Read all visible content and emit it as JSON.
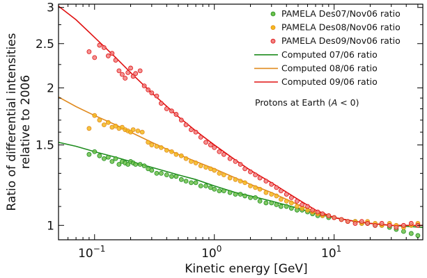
{
  "chart_data": {
    "type": "scatter",
    "xlabel": "Kinetic energy [GeV]",
    "ylabel_lines": [
      "Ratio of differential intensities",
      "relative to 2006"
    ],
    "xscale": "log",
    "yscale": "log",
    "xlim": [
      0.05,
      55
    ],
    "ylim": [
      0.93,
      3.05
    ],
    "x_ticks": [
      {
        "value": 0.1,
        "base": "10",
        "exp": "−1"
      },
      {
        "value": 1,
        "base": "10",
        "exp": "0"
      },
      {
        "value": 10,
        "base": "10",
        "exp": "1"
      }
    ],
    "y_ticks": [
      {
        "value": 1,
        "label": "1"
      },
      {
        "value": 1.5,
        "label": "1.5"
      },
      {
        "value": 2,
        "label": "2"
      },
      {
        "value": 2.5,
        "label": "2.5"
      },
      {
        "value": 3,
        "label": "3"
      }
    ],
    "annotation": {
      "prefix": "Protons at Earth (",
      "symbol": "A",
      "suffix": " < 0)"
    },
    "legend_position": "top-right",
    "colors": {
      "green": "#1e8c1e",
      "green_fill": "#6cbf4a",
      "orange": "#e08a1e",
      "orange_fill": "#f5b81c",
      "red": "#e01010",
      "red_fill": "#f08080"
    },
    "series": [
      {
        "name": "PAMELA Des07/Nov06 ratio",
        "kind": "points",
        "color_key": "green",
        "points": [
          [
            0.09,
            1.43
          ],
          [
            0.1,
            1.45
          ],
          [
            0.11,
            1.42
          ],
          [
            0.12,
            1.4
          ],
          [
            0.13,
            1.41
          ],
          [
            0.14,
            1.38
          ],
          [
            0.15,
            1.4
          ],
          [
            0.16,
            1.36
          ],
          [
            0.17,
            1.38
          ],
          [
            0.18,
            1.37
          ],
          [
            0.19,
            1.36
          ],
          [
            0.2,
            1.38
          ],
          [
            0.21,
            1.37
          ],
          [
            0.22,
            1.36
          ],
          [
            0.24,
            1.36
          ],
          [
            0.26,
            1.35
          ],
          [
            0.28,
            1.33
          ],
          [
            0.3,
            1.32
          ],
          [
            0.33,
            1.3
          ],
          [
            0.36,
            1.3
          ],
          [
            0.4,
            1.29
          ],
          [
            0.44,
            1.28
          ],
          [
            0.48,
            1.28
          ],
          [
            0.53,
            1.26
          ],
          [
            0.58,
            1.25
          ],
          [
            0.64,
            1.24
          ],
          [
            0.7,
            1.24
          ],
          [
            0.77,
            1.22
          ],
          [
            0.85,
            1.22
          ],
          [
            0.93,
            1.21
          ],
          [
            1.0,
            1.2
          ],
          [
            1.1,
            1.19
          ],
          [
            1.2,
            1.19
          ],
          [
            1.35,
            1.18
          ],
          [
            1.5,
            1.17
          ],
          [
            1.65,
            1.17
          ],
          [
            1.8,
            1.16
          ],
          [
            2.0,
            1.15
          ],
          [
            2.2,
            1.15
          ],
          [
            2.4,
            1.13
          ],
          [
            2.7,
            1.12
          ],
          [
            3.0,
            1.12
          ],
          [
            3.3,
            1.11
          ],
          [
            3.6,
            1.1
          ],
          [
            4.0,
            1.1
          ],
          [
            4.4,
            1.09
          ],
          [
            4.9,
            1.08
          ],
          [
            5.4,
            1.08
          ],
          [
            6.0,
            1.07
          ],
          [
            6.6,
            1.06
          ],
          [
            7.3,
            1.05
          ],
          [
            8.0,
            1.05
          ],
          [
            9.0,
            1.04
          ],
          [
            10,
            1.04
          ],
          [
            11.5,
            1.03
          ],
          [
            13,
            1.02
          ],
          [
            15,
            1.02
          ],
          [
            17,
            1.01
          ],
          [
            19,
            1.01
          ],
          [
            22,
            1.0
          ],
          [
            25,
            1.0
          ],
          [
            29,
            0.99
          ],
          [
            33,
            0.98
          ],
          [
            38,
            0.97
          ],
          [
            44,
            0.96
          ],
          [
            50,
            0.95
          ]
        ]
      },
      {
        "name": "PAMELA Des08/Nov06 ratio",
        "kind": "points",
        "color_key": "orange",
        "points": [
          [
            0.09,
            1.63
          ],
          [
            0.1,
            1.74
          ],
          [
            0.11,
            1.7
          ],
          [
            0.12,
            1.66
          ],
          [
            0.13,
            1.68
          ],
          [
            0.14,
            1.64
          ],
          [
            0.15,
            1.65
          ],
          [
            0.16,
            1.63
          ],
          [
            0.17,
            1.64
          ],
          [
            0.18,
            1.62
          ],
          [
            0.19,
            1.61
          ],
          [
            0.2,
            1.6
          ],
          [
            0.21,
            1.62
          ],
          [
            0.23,
            1.61
          ],
          [
            0.25,
            1.6
          ],
          [
            0.28,
            1.52
          ],
          [
            0.3,
            1.5
          ],
          [
            0.33,
            1.49
          ],
          [
            0.36,
            1.48
          ],
          [
            0.4,
            1.46
          ],
          [
            0.44,
            1.45
          ],
          [
            0.48,
            1.43
          ],
          [
            0.53,
            1.42
          ],
          [
            0.58,
            1.4
          ],
          [
            0.64,
            1.38
          ],
          [
            0.7,
            1.37
          ],
          [
            0.77,
            1.35
          ],
          [
            0.85,
            1.34
          ],
          [
            0.93,
            1.33
          ],
          [
            1.0,
            1.32
          ],
          [
            1.1,
            1.3
          ],
          [
            1.2,
            1.29
          ],
          [
            1.35,
            1.27
          ],
          [
            1.5,
            1.26
          ],
          [
            1.65,
            1.25
          ],
          [
            1.8,
            1.24
          ],
          [
            2.0,
            1.22
          ],
          [
            2.2,
            1.21
          ],
          [
            2.4,
            1.2
          ],
          [
            2.7,
            1.18
          ],
          [
            3.0,
            1.17
          ],
          [
            3.3,
            1.16
          ],
          [
            3.6,
            1.14
          ],
          [
            4.0,
            1.13
          ],
          [
            4.4,
            1.12
          ],
          [
            4.9,
            1.1
          ],
          [
            5.4,
            1.09
          ],
          [
            6.0,
            1.08
          ],
          [
            6.6,
            1.07
          ],
          [
            7.3,
            1.06
          ],
          [
            8.0,
            1.05
          ],
          [
            9.0,
            1.05
          ],
          [
            10,
            1.04
          ],
          [
            11.5,
            1.03
          ],
          [
            13,
            1.02
          ],
          [
            15,
            1.02
          ],
          [
            17,
            1.01
          ],
          [
            19,
            1.02
          ],
          [
            22,
            1.01
          ],
          [
            25,
            1.0
          ],
          [
            29,
            1.01
          ],
          [
            33,
            1.0
          ],
          [
            38,
            0.99
          ],
          [
            44,
            1.0
          ],
          [
            50,
            1.01
          ]
        ]
      },
      {
        "name": "PAMELA Des09/Nov06 ratio",
        "kind": "points",
        "color_key": "red",
        "points": [
          [
            0.09,
            2.4
          ],
          [
            0.1,
            2.33
          ],
          [
            0.11,
            2.48
          ],
          [
            0.12,
            2.45
          ],
          [
            0.13,
            2.35
          ],
          [
            0.14,
            2.38
          ],
          [
            0.15,
            2.3
          ],
          [
            0.16,
            2.18
          ],
          [
            0.17,
            2.14
          ],
          [
            0.18,
            2.1
          ],
          [
            0.19,
            2.16
          ],
          [
            0.2,
            2.21
          ],
          [
            0.21,
            2.12
          ],
          [
            0.22,
            2.15
          ],
          [
            0.24,
            2.18
          ],
          [
            0.26,
            2.02
          ],
          [
            0.28,
            1.98
          ],
          [
            0.3,
            1.95
          ],
          [
            0.33,
            1.92
          ],
          [
            0.36,
            1.85
          ],
          [
            0.4,
            1.8
          ],
          [
            0.44,
            1.78
          ],
          [
            0.48,
            1.75
          ],
          [
            0.53,
            1.7
          ],
          [
            0.58,
            1.66
          ],
          [
            0.64,
            1.62
          ],
          [
            0.7,
            1.6
          ],
          [
            0.77,
            1.56
          ],
          [
            0.85,
            1.52
          ],
          [
            0.93,
            1.5
          ],
          [
            1.0,
            1.48
          ],
          [
            1.1,
            1.45
          ],
          [
            1.2,
            1.43
          ],
          [
            1.35,
            1.4
          ],
          [
            1.5,
            1.38
          ],
          [
            1.65,
            1.36
          ],
          [
            1.8,
            1.33
          ],
          [
            2.0,
            1.31
          ],
          [
            2.2,
            1.29
          ],
          [
            2.4,
            1.27
          ],
          [
            2.7,
            1.25
          ],
          [
            3.0,
            1.23
          ],
          [
            3.3,
            1.21
          ],
          [
            3.6,
            1.19
          ],
          [
            4.0,
            1.17
          ],
          [
            4.4,
            1.15
          ],
          [
            4.9,
            1.13
          ],
          [
            5.4,
            1.11
          ],
          [
            6.0,
            1.1
          ],
          [
            6.6,
            1.08
          ],
          [
            7.3,
            1.07
          ],
          [
            8.0,
            1.06
          ],
          [
            9.0,
            1.05
          ],
          [
            10,
            1.04
          ],
          [
            11.5,
            1.03
          ],
          [
            13,
            1.02
          ],
          [
            15,
            1.01
          ],
          [
            17,
            1.02
          ],
          [
            19,
            1.01
          ],
          [
            22,
            1.0
          ],
          [
            25,
            1.01
          ],
          [
            29,
            1.0
          ],
          [
            33,
            0.99
          ],
          [
            38,
            1.0
          ],
          [
            44,
            1.01
          ],
          [
            50,
            1.0
          ]
        ]
      },
      {
        "name": "Computed 07/06 ratio",
        "kind": "line",
        "color_key": "green",
        "points": [
          [
            0.05,
            1.52
          ],
          [
            0.07,
            1.49
          ],
          [
            0.1,
            1.45
          ],
          [
            0.15,
            1.41
          ],
          [
            0.2,
            1.38
          ],
          [
            0.3,
            1.34
          ],
          [
            0.5,
            1.29
          ],
          [
            0.7,
            1.26
          ],
          [
            1.0,
            1.22
          ],
          [
            1.5,
            1.18
          ],
          [
            2.0,
            1.16
          ],
          [
            3.0,
            1.13
          ],
          [
            5.0,
            1.09
          ],
          [
            7.0,
            1.06
          ],
          [
            10,
            1.04
          ],
          [
            15,
            1.02
          ],
          [
            20,
            1.01
          ],
          [
            30,
            1.0
          ],
          [
            55,
            0.99
          ]
        ]
      },
      {
        "name": "Computed 08/06 ratio",
        "kind": "line",
        "color_key": "orange",
        "points": [
          [
            0.05,
            1.91
          ],
          [
            0.07,
            1.82
          ],
          [
            0.1,
            1.74
          ],
          [
            0.15,
            1.66
          ],
          [
            0.2,
            1.6
          ],
          [
            0.3,
            1.52
          ],
          [
            0.5,
            1.43
          ],
          [
            0.7,
            1.38
          ],
          [
            1.0,
            1.33
          ],
          [
            1.5,
            1.27
          ],
          [
            2.0,
            1.23
          ],
          [
            3.0,
            1.18
          ],
          [
            5.0,
            1.11
          ],
          [
            7.0,
            1.07
          ],
          [
            10,
            1.04
          ],
          [
            15,
            1.02
          ],
          [
            20,
            1.01
          ],
          [
            30,
            1.0
          ],
          [
            55,
            1.0
          ]
        ]
      },
      {
        "name": "Computed 09/06 ratio",
        "kind": "line",
        "color_key": "red",
        "points": [
          [
            0.05,
            3.02
          ],
          [
            0.07,
            2.82
          ],
          [
            0.1,
            2.58
          ],
          [
            0.15,
            2.33
          ],
          [
            0.2,
            2.16
          ],
          [
            0.3,
            1.95
          ],
          [
            0.5,
            1.73
          ],
          [
            0.7,
            1.61
          ],
          [
            1.0,
            1.5
          ],
          [
            1.5,
            1.39
          ],
          [
            2.0,
            1.32
          ],
          [
            3.0,
            1.24
          ],
          [
            5.0,
            1.14
          ],
          [
            7.0,
            1.08
          ],
          [
            10,
            1.04
          ],
          [
            15,
            1.02
          ],
          [
            20,
            1.01
          ],
          [
            30,
            1.0
          ],
          [
            55,
            1.0
          ]
        ]
      }
    ]
  }
}
